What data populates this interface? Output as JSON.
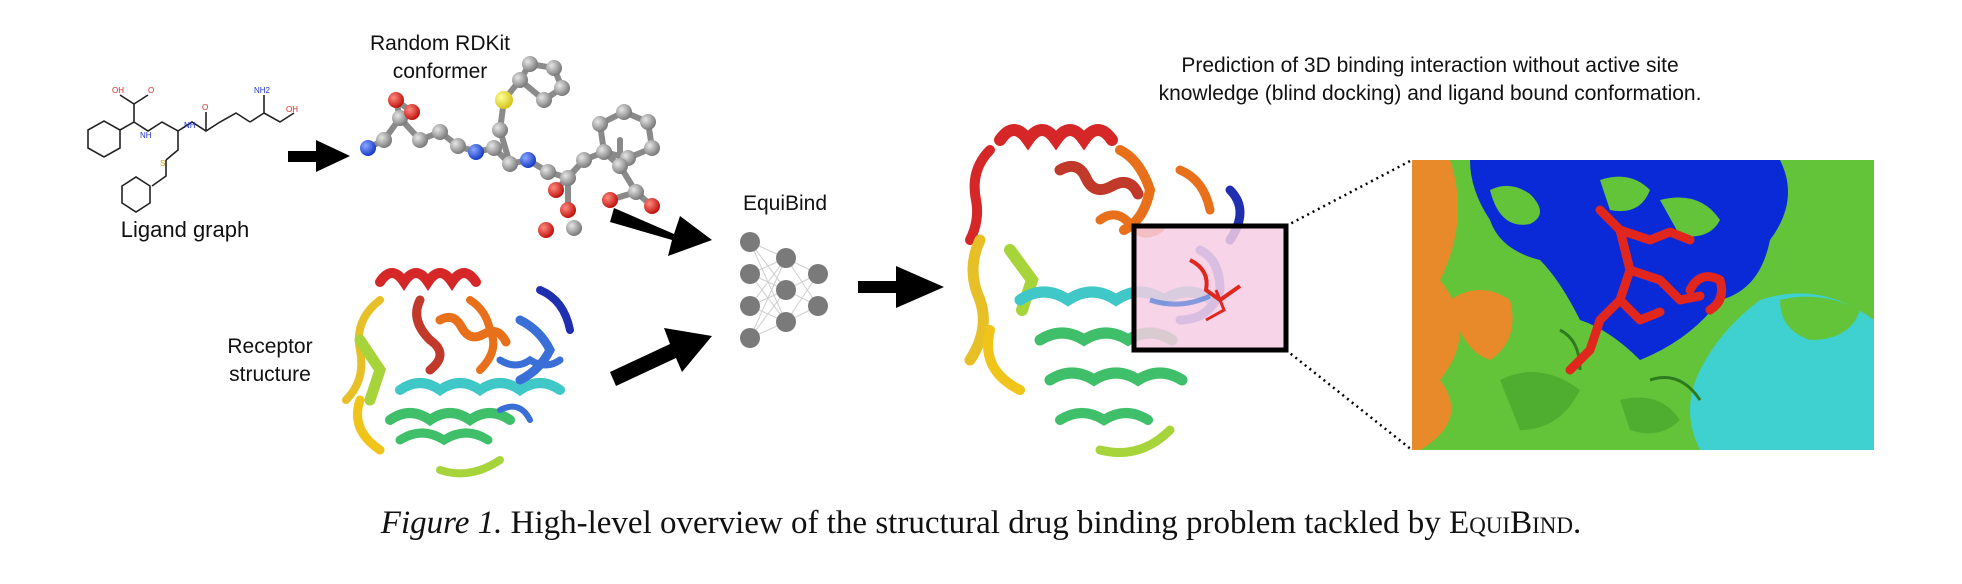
{
  "labels": {
    "ligand_graph": "Ligand graph",
    "rdkit_conformer_line1": "Random RDKit",
    "rdkit_conformer_line2": "conformer",
    "receptor_line1": "Receptor",
    "receptor_line2": "structure",
    "equibind": "EquiBind",
    "prediction_line1": "Prediction of 3D binding interaction without active site",
    "prediction_line2": "knowledge (blind docking) and ligand bound conformation."
  },
  "ligand_atoms": {
    "oh": "OH",
    "o": "O",
    "nh": "NH",
    "nh2": "NH2",
    "s": "S"
  },
  "caption": {
    "figure_label": "Figure 1.",
    "text": "High-level overview of the structural drug binding problem tackled by",
    "method": "EquiBind",
    "end": "."
  },
  "colors": {
    "helix_rainbow": [
      "#d62728",
      "#e8701a",
      "#f0c419",
      "#a6d43a",
      "#3fbf6a",
      "#40c8c8",
      "#3a6fd8",
      "#1f2fb0"
    ],
    "surface_green": "#63c43a",
    "surface_blue": "#0a2ad8",
    "surface_orange": "#e88a2a",
    "surface_cyan": "#3fd0d0",
    "ligand_red": "#e0261d",
    "highlight_pink": "#f6cde3"
  }
}
